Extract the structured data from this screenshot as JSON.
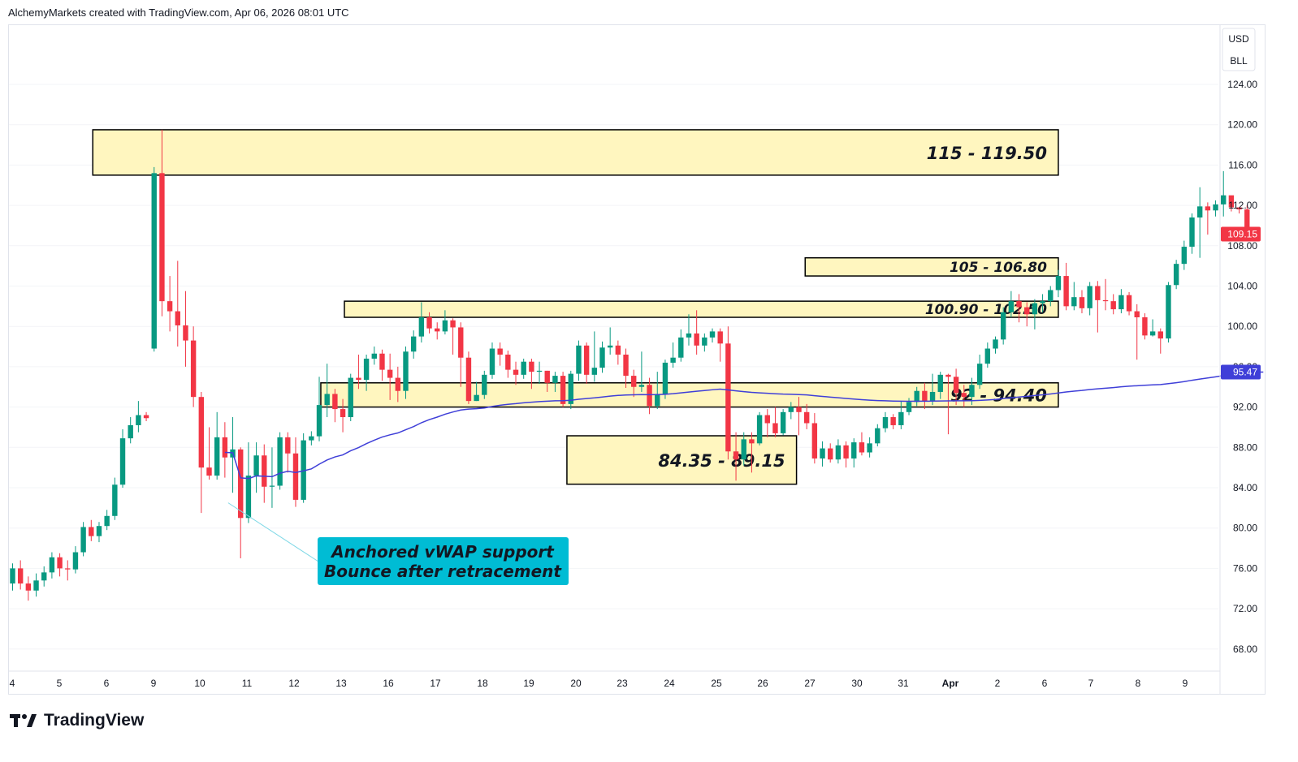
{
  "header": {
    "attribution": "AlchemyMarkets created with TradingView.com, Apr 06, 2026 08:01 UTC"
  },
  "brand": {
    "name": "TradingView"
  },
  "axis": {
    "currency": "USD",
    "unit": "BLL"
  },
  "colors": {
    "up": "#089981",
    "down": "#f23645",
    "zone_fill": "#fff6bf",
    "zone_border": "#000000",
    "vwap": "#3f3fd8",
    "callout": "#00bcd4",
    "last_price": "#f23645",
    "vwap_tag": "#3f3fd8"
  },
  "chart_data": {
    "type": "candlestick",
    "ylim": [
      65,
      130
    ],
    "y_ticks": [
      124,
      120,
      116,
      112,
      108,
      104,
      100,
      96,
      92,
      88,
      84,
      80,
      76,
      72,
      68
    ],
    "x_ticks": [
      "4",
      "5",
      "6",
      "9",
      "10",
      "11",
      "12",
      "13",
      "16",
      "17",
      "18",
      "19",
      "20",
      "23",
      "24",
      "25",
      "26",
      "27",
      "30",
      "31",
      "Apr",
      "2",
      "6",
      "7",
      "8",
      "9"
    ],
    "last_price": {
      "value": 109.15,
      "label": "109.15"
    },
    "vwap_last": {
      "value": 95.47,
      "label": "95.47"
    },
    "zones": [
      {
        "label": "115 - 119.50",
        "low": 115,
        "high": 119.5,
        "from": 10.2,
        "to": 133,
        "size": "large"
      },
      {
        "label": "105 - 106.80",
        "low": 105,
        "high": 106.8,
        "from": 100.8,
        "to": 133,
        "size": "small"
      },
      {
        "label": "100.90 - 102.50",
        "low": 100.9,
        "high": 102.5,
        "from": 42.2,
        "to": 133,
        "size": "small"
      },
      {
        "label": "92 - 94.40",
        "low": 92,
        "high": 94.4,
        "from": 39.2,
        "to": 133,
        "size": "large"
      },
      {
        "label": "84.35 - 89.15",
        "low": 84.35,
        "high": 89.15,
        "from": 70.5,
        "to": 99.7,
        "size": "large"
      }
    ],
    "annotation": {
      "lines": [
        "Anchored vWAP support",
        "Bounce after retracement"
      ],
      "anchor_index": 27,
      "anchor_price": 82.5
    },
    "candles": [
      [
        74.5,
        76.0,
        73.8,
        76.5
      ],
      [
        76.0,
        74.5,
        73.9,
        76.8
      ],
      [
        74.5,
        73.8,
        72.8,
        75.2
      ],
      [
        73.8,
        74.8,
        73.2,
        75.5
      ],
      [
        74.8,
        75.6,
        74.2,
        76.2
      ],
      [
        75.6,
        77.1,
        75.0,
        77.6
      ],
      [
        77.1,
        76.0,
        75.2,
        77.5
      ],
      [
        76.0,
        75.9,
        74.8,
        76.8
      ],
      [
        75.9,
        77.6,
        75.5,
        78.2
      ],
      [
        77.6,
        80.1,
        77.2,
        80.6
      ],
      [
        80.1,
        79.2,
        78.7,
        80.8
      ],
      [
        79.2,
        80.2,
        78.6,
        80.6
      ],
      [
        80.2,
        81.2,
        79.8,
        81.8
      ],
      [
        81.2,
        84.3,
        80.8,
        85.0
      ],
      [
        84.3,
        88.9,
        84.0,
        89.8
      ],
      [
        88.9,
        90.2,
        88.4,
        91.0
      ],
      [
        90.2,
        91.2,
        89.5,
        92.6
      ],
      [
        91.2,
        90.9,
        90.6,
        91.5
      ],
      [
        97.8,
        115.2,
        97.5,
        115.8
      ],
      [
        115.2,
        102.5,
        101.0,
        119.5
      ],
      [
        102.5,
        101.5,
        99.5,
        105.0
      ],
      [
        101.5,
        100.1,
        98.0,
        106.5
      ],
      [
        100.1,
        98.6,
        96.0,
        103.5
      ],
      [
        98.6,
        93.0,
        92.0,
        100.0
      ],
      [
        93.0,
        86.0,
        81.5,
        93.5
      ],
      [
        86.0,
        85.2,
        84.8,
        90.0
      ],
      [
        85.2,
        89.0,
        84.8,
        91.5
      ],
      [
        89.0,
        87.0,
        85.0,
        90.5
      ],
      [
        87.0,
        87.8,
        83.5,
        91.0
      ],
      [
        87.8,
        81.0,
        77.0,
        88.0
      ],
      [
        81.0,
        85.2,
        80.5,
        88.5
      ],
      [
        85.2,
        87.2,
        83.5,
        88.5
      ],
      [
        87.2,
        84.1,
        82.5,
        88.3
      ],
      [
        84.1,
        84.2,
        82.0,
        88.0
      ],
      [
        84.2,
        89.0,
        83.8,
        89.5
      ],
      [
        89.0,
        87.4,
        85.5,
        89.5
      ],
      [
        87.4,
        82.8,
        82.1,
        89.0
      ],
      [
        82.8,
        88.7,
        82.5,
        89.4
      ],
      [
        88.7,
        89.1,
        88.2,
        89.6
      ],
      [
        89.1,
        92.2,
        88.6,
        95.0
      ],
      [
        92.2,
        93.3,
        91.0,
        96.3
      ],
      [
        93.3,
        91.8,
        90.5,
        93.8
      ],
      [
        91.8,
        91.0,
        89.5,
        92.8
      ],
      [
        91.0,
        94.9,
        90.6,
        95.3
      ],
      [
        94.9,
        94.7,
        93.8,
        97.2
      ],
      [
        94.7,
        96.8,
        93.6,
        97.2
      ],
      [
        96.8,
        97.3,
        96.2,
        98.0
      ],
      [
        97.3,
        95.7,
        94.6,
        97.7
      ],
      [
        95.7,
        94.9,
        92.7,
        97.3
      ],
      [
        94.9,
        93.6,
        92.5,
        96.0
      ],
      [
        93.6,
        97.5,
        92.8,
        98.0
      ],
      [
        97.5,
        99.0,
        96.8,
        99.6
      ],
      [
        99.0,
        100.9,
        98.4,
        102.4
      ],
      [
        100.9,
        99.8,
        99.3,
        101.4
      ],
      [
        99.8,
        99.5,
        98.7,
        100.4
      ],
      [
        99.5,
        100.6,
        99.2,
        101.6
      ],
      [
        100.6,
        99.9,
        97.2,
        100.8
      ],
      [
        99.9,
        96.9,
        94.0,
        100.4
      ],
      [
        96.9,
        92.6,
        92.3,
        97.5
      ],
      [
        92.6,
        93.2,
        92.6,
        94.5
      ],
      [
        93.2,
        95.2,
        92.8,
        95.6
      ],
      [
        95.2,
        97.8,
        94.8,
        98.4
      ],
      [
        97.8,
        97.2,
        96.1,
        98.4
      ],
      [
        97.2,
        95.7,
        94.9,
        97.6
      ],
      [
        95.7,
        95.2,
        94.2,
        96.5
      ],
      [
        95.2,
        96.5,
        94.8,
        96.8
      ],
      [
        96.5,
        95.5,
        93.8,
        96.8
      ],
      [
        95.5,
        95.6,
        94.3,
        96.5
      ],
      [
        95.6,
        94.4,
        93.5,
        95.6
      ],
      [
        94.4,
        95.1,
        93.5,
        95.5
      ],
      [
        95.1,
        92.3,
        92.0,
        95.5
      ],
      [
        92.3,
        95.3,
        91.8,
        95.6
      ],
      [
        95.3,
        98.1,
        94.6,
        98.6
      ],
      [
        98.1,
        95.2,
        94.3,
        98.4
      ],
      [
        95.2,
        95.9,
        94.5,
        99.5
      ],
      [
        95.9,
        97.9,
        95.4,
        98.5
      ],
      [
        97.9,
        98.1,
        97.2,
        99.9
      ],
      [
        98.1,
        97.2,
        96.2,
        98.6
      ],
      [
        97.2,
        95.1,
        93.9,
        97.8
      ],
      [
        95.1,
        94.0,
        93.0,
        95.7
      ],
      [
        94.0,
        94.2,
        93.5,
        97.5
      ],
      [
        94.2,
        92.1,
        91.3,
        94.9
      ],
      [
        92.1,
        93.3,
        91.8,
        95.5
      ],
      [
        93.3,
        96.4,
        92.8,
        96.7
      ],
      [
        96.4,
        96.9,
        95.9,
        98.4
      ],
      [
        96.9,
        98.9,
        96.5,
        99.7
      ],
      [
        98.9,
        99.3,
        98.1,
        101.2
      ],
      [
        99.3,
        98.1,
        97.2,
        101.6
      ],
      [
        98.1,
        98.9,
        97.5,
        99.3
      ],
      [
        98.9,
        99.5,
        98.4,
        99.8
      ],
      [
        99.5,
        98.3,
        96.5,
        99.8
      ],
      [
        98.3,
        87.6,
        86.8,
        100.0
      ],
      [
        87.6,
        86.8,
        84.7,
        89.5
      ],
      [
        86.8,
        88.8,
        86.2,
        89.5
      ],
      [
        88.8,
        88.4,
        85.5,
        89.5
      ],
      [
        88.4,
        91.2,
        88.2,
        91.5
      ],
      [
        91.2,
        90.4,
        89.0,
        91.8
      ],
      [
        90.4,
        89.4,
        89.0,
        92.0
      ],
      [
        89.4,
        91.5,
        89.2,
        91.8
      ],
      [
        91.5,
        92.0,
        90.8,
        92.5
      ],
      [
        92.0,
        91.5,
        89.2,
        93.0
      ],
      [
        91.5,
        90.4,
        89.8,
        92.3
      ],
      [
        90.4,
        86.9,
        86.4,
        91.4
      ],
      [
        86.9,
        87.9,
        86.1,
        88.6
      ],
      [
        87.9,
        86.8,
        86.5,
        88.4
      ],
      [
        86.8,
        88.2,
        86.4,
        88.8
      ],
      [
        88.2,
        86.9,
        86.0,
        88.6
      ],
      [
        86.9,
        88.5,
        86.0,
        88.9
      ],
      [
        88.5,
        87.5,
        87.2,
        89.5
      ],
      [
        87.5,
        88.4,
        87.0,
        89.0
      ],
      [
        88.4,
        89.9,
        88.1,
        90.3
      ],
      [
        89.9,
        91.0,
        89.5,
        91.5
      ],
      [
        91.0,
        90.2,
        89.8,
        91.3
      ],
      [
        90.2,
        91.5,
        89.8,
        92.6
      ],
      [
        91.5,
        92.5,
        91.2,
        92.9
      ],
      [
        92.5,
        93.6,
        92.1,
        94.0
      ],
      [
        93.6,
        92.6,
        91.8,
        94.4
      ],
      [
        92.6,
        93.5,
        92.2,
        95.3
      ],
      [
        93.5,
        95.2,
        92.8,
        95.5
      ],
      [
        95.2,
        95.0,
        89.3,
        95.3
      ]
    ],
    "candles_part2": [
      [
        95.0,
        93.4,
        92.2,
        95.8
      ],
      [
        93.4,
        93.0,
        92.0,
        94.2
      ],
      [
        93.0,
        94.2,
        92.2,
        94.9
      ],
      [
        94.2,
        96.3,
        93.8,
        97.2
      ],
      [
        96.3,
        97.8,
        95.9,
        98.4
      ],
      [
        97.8,
        98.7,
        97.3,
        99.0
      ],
      [
        98.7,
        101.4,
        98.2,
        101.9
      ],
      [
        101.4,
        102.5,
        100.9,
        103.5
      ],
      [
        102.5,
        101.9,
        100.4,
        103.2
      ],
      [
        101.9,
        101.2,
        100.0,
        102.4
      ],
      [
        101.2,
        102.3,
        99.7,
        102.7
      ],
      [
        102.3,
        102.5,
        101.4,
        103.2
      ],
      [
        102.5,
        103.6,
        102.0,
        104.0
      ],
      [
        103.6,
        105.0,
        102.9,
        105.6
      ],
      [
        105.0,
        102.0,
        101.6,
        106.3
      ],
      [
        102.0,
        102.9,
        101.6,
        104.4
      ],
      [
        102.9,
        101.8,
        101.3,
        103.6
      ],
      [
        101.8,
        104.0,
        101.1,
        104.4
      ],
      [
        104.0,
        102.6,
        99.4,
        104.5
      ],
      [
        102.6,
        102.5,
        101.6,
        104.7
      ],
      [
        102.5,
        101.7,
        101.2,
        103.2
      ],
      [
        101.7,
        103.1,
        101.3,
        103.7
      ],
      [
        103.1,
        101.5,
        101.1,
        103.4
      ],
      [
        101.5,
        100.9,
        96.7,
        102.2
      ],
      [
        100.9,
        99.1,
        98.7,
        101.3
      ],
      [
        99.1,
        99.5,
        99.0,
        100.7
      ],
      [
        99.5,
        98.8,
        97.3,
        99.8
      ],
      [
        98.8,
        104.1,
        98.4,
        104.4
      ],
      [
        104.1,
        106.2,
        103.7,
        106.6
      ],
      [
        106.2,
        107.9,
        105.6,
        108.5
      ],
      [
        107.9,
        110.8,
        107.2,
        111.2
      ],
      [
        110.8,
        111.9,
        106.8,
        113.8
      ],
      [
        111.9,
        111.5,
        109.1,
        112.3
      ],
      [
        111.5,
        112.1,
        110.9,
        112.5
      ],
      [
        112.1,
        113.0,
        110.9,
        115.4
      ],
      [
        113.0,
        111.8,
        111.4,
        112.8
      ],
      [
        111.8,
        111.6,
        111.2,
        111.8
      ],
      [
        111.6,
        109.2,
        108.9,
        112.0
      ]
    ]
  }
}
